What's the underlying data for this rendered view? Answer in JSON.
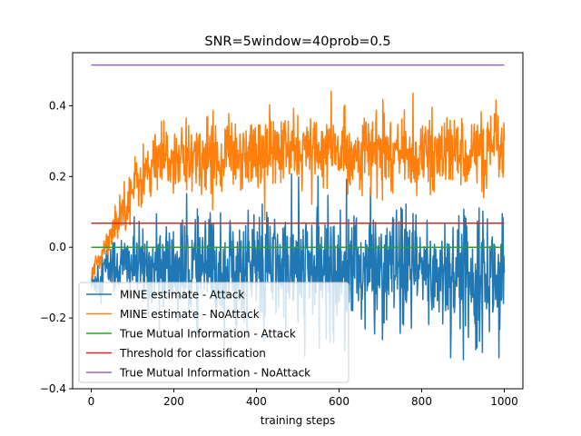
{
  "chart_data": {
    "type": "line",
    "title": "SNR=5window=40prob=0.5",
    "xlabel": "training steps",
    "ylabel": "",
    "xlim": [
      -45,
      1045
    ],
    "ylim": [
      -0.4,
      0.55
    ],
    "xticks": [
      0,
      200,
      400,
      600,
      800,
      1000
    ],
    "yticks": [
      -0.4,
      -0.2,
      0.0,
      0.2,
      0.4
    ],
    "ytick_labels": [
      "−0.4",
      "−0.2",
      "0.0",
      "0.2",
      "0.4"
    ],
    "grid": false,
    "legend_position": "lower-left",
    "series": [
      {
        "name": "MINE estimate - Attack",
        "color": "#1f77b4",
        "kind": "noisy",
        "x": [
          0,
          20,
          50,
          100,
          150,
          200,
          300,
          400,
          500,
          600,
          700,
          800,
          900,
          1000
        ],
        "mean": [
          -0.11,
          -0.07,
          -0.05,
          -0.05,
          -0.06,
          -0.06,
          -0.06,
          -0.05,
          -0.07,
          -0.05,
          -0.06,
          -0.07,
          -0.07,
          -0.08
        ],
        "spread": [
          0.02,
          0.04,
          0.05,
          0.06,
          0.07,
          0.08,
          0.09,
          0.09,
          0.1,
          0.1,
          0.1,
          0.1,
          0.1,
          0.1
        ]
      },
      {
        "name": "MINE estimate - NoAttack",
        "color": "#ff7f0e",
        "kind": "noisy",
        "x": [
          0,
          25,
          50,
          80,
          110,
          140,
          170,
          200,
          300,
          400,
          500,
          600,
          700,
          800,
          900,
          1000
        ],
        "mean": [
          -0.08,
          -0.02,
          0.05,
          0.12,
          0.18,
          0.22,
          0.24,
          0.25,
          0.26,
          0.27,
          0.27,
          0.27,
          0.27,
          0.26,
          0.27,
          0.27
        ],
        "spread": [
          0.01,
          0.02,
          0.03,
          0.04,
          0.05,
          0.05,
          0.06,
          0.06,
          0.06,
          0.06,
          0.06,
          0.06,
          0.06,
          0.06,
          0.06,
          0.06
        ]
      },
      {
        "name": "True Mutual Information - Attack",
        "color": "#2ca02c",
        "kind": "constant",
        "x": [
          0,
          1000
        ],
        "values": [
          0.0,
          0.0
        ]
      },
      {
        "name": "Threshold for classification",
        "color": "#d62728",
        "kind": "constant",
        "x": [
          0,
          1000
        ],
        "values": [
          0.068,
          0.068
        ]
      },
      {
        "name": "True Mutual Information - NoAttack",
        "color": "#9467bd",
        "kind": "constant",
        "x": [
          0,
          1000
        ],
        "values": [
          0.515,
          0.515
        ]
      }
    ],
    "legend": [
      "MINE estimate - Attack",
      "MINE estimate - NoAttack",
      "True Mutual Information - Attack",
      "Threshold for classification",
      "True Mutual Information - NoAttack"
    ]
  }
}
